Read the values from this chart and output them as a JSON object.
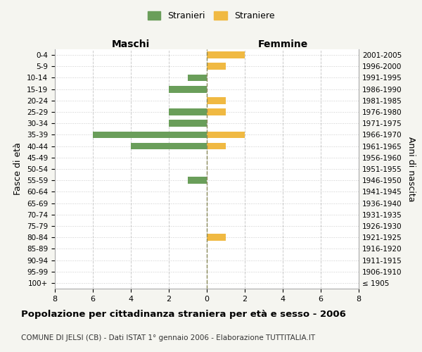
{
  "age_groups": [
    "100+",
    "95-99",
    "90-94",
    "85-89",
    "80-84",
    "75-79",
    "70-74",
    "65-69",
    "60-64",
    "55-59",
    "50-54",
    "45-49",
    "40-44",
    "35-39",
    "30-34",
    "25-29",
    "20-24",
    "15-19",
    "10-14",
    "5-9",
    "0-4"
  ],
  "birth_years": [
    "≤ 1905",
    "1906-1910",
    "1911-1915",
    "1916-1920",
    "1921-1925",
    "1926-1930",
    "1931-1935",
    "1936-1940",
    "1941-1945",
    "1946-1950",
    "1951-1955",
    "1956-1960",
    "1961-1965",
    "1966-1970",
    "1971-1975",
    "1976-1980",
    "1981-1985",
    "1986-1990",
    "1991-1995",
    "1996-2000",
    "2001-2005"
  ],
  "males": [
    0,
    0,
    0,
    0,
    0,
    0,
    0,
    0,
    0,
    1,
    0,
    0,
    4,
    6,
    2,
    2,
    0,
    2,
    1,
    0,
    0
  ],
  "females": [
    0,
    0,
    0,
    0,
    1,
    0,
    0,
    0,
    0,
    0,
    0,
    0,
    1,
    2,
    0,
    1,
    1,
    0,
    0,
    1,
    2
  ],
  "male_color": "#6a9e5a",
  "female_color": "#f0b942",
  "center_line_color": "#8a8a5a",
  "grid_color": "#cccccc",
  "xlim": 8,
  "title": "Popolazione per cittadinanza straniera per età e sesso - 2006",
  "subtitle": "COMUNE DI JELSI (CB) - Dati ISTAT 1° gennaio 2006 - Elaborazione TUTTITALIA.IT",
  "ylabel_left": "Fasce di età",
  "ylabel_right": "Anni di nascita",
  "xlabel_maschi": "Maschi",
  "xlabel_femmine": "Femmine",
  "legend_stranieri": "Stranieri",
  "legend_straniere": "Straniere",
  "bg_color": "#f5f5f0",
  "plot_bg_color": "#ffffff"
}
